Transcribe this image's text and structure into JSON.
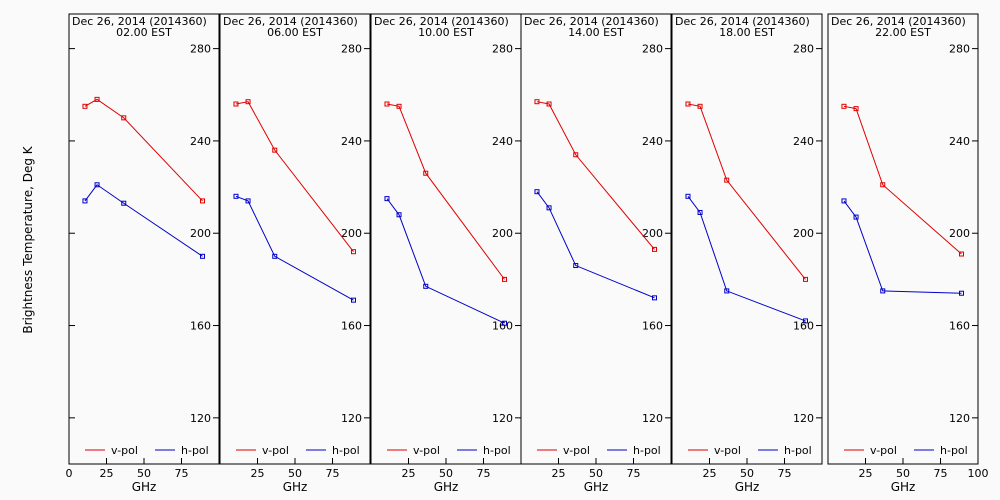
{
  "figure": {
    "ylabel": "Brightness Temperature, Deg K",
    "ylim": [
      100,
      295
    ],
    "yticks": [
      120,
      160,
      200,
      240,
      280
    ],
    "xlim": [
      0,
      100
    ],
    "xticks": [
      0,
      25,
      50,
      75,
      100
    ],
    "xlabel": "GHz",
    "colors": {
      "v-pol": "#e00000",
      "h-pol": "#0000c8",
      "background": "#fafafa"
    }
  },
  "chart_data": [
    {
      "type": "line",
      "title": "Dec 26, 2014 (2014360)",
      "subtitle": "02.00 EST",
      "xlabel": "GHz",
      "x": [
        10.65,
        18.7,
        36.5,
        89.0
      ],
      "series": [
        {
          "name": "v-pol",
          "values": [
            255,
            258,
            250,
            214
          ]
        },
        {
          "name": "h-pol",
          "values": [
            214,
            221,
            213,
            190
          ]
        }
      ]
    },
    {
      "type": "line",
      "title": "Dec 26, 2014 (2014360)",
      "subtitle": "06.00 EST",
      "xlabel": "GHz",
      "x": [
        10.65,
        18.7,
        36.5,
        89.0
      ],
      "series": [
        {
          "name": "v-pol",
          "values": [
            256,
            257,
            236,
            192
          ]
        },
        {
          "name": "h-pol",
          "values": [
            216,
            214,
            190,
            171
          ]
        }
      ]
    },
    {
      "type": "line",
      "title": "Dec 26, 2014 (2014360)",
      "subtitle": "10.00 EST",
      "xlabel": "GHz",
      "x": [
        10.65,
        18.7,
        36.5,
        89.0
      ],
      "series": [
        {
          "name": "v-pol",
          "values": [
            256,
            255,
            226,
            180
          ]
        },
        {
          "name": "h-pol",
          "values": [
            215,
            208,
            177,
            161
          ]
        }
      ]
    },
    {
      "type": "line",
      "title": "Dec 26, 2014 (2014360)",
      "subtitle": "14.00 EST",
      "xlabel": "GHz",
      "x": [
        10.65,
        18.7,
        36.5,
        89.0
      ],
      "series": [
        {
          "name": "v-pol",
          "values": [
            257,
            256,
            234,
            193
          ]
        },
        {
          "name": "h-pol",
          "values": [
            218,
            211,
            186,
            172
          ]
        }
      ]
    },
    {
      "type": "line",
      "title": "Dec 26, 2014 (2014360)",
      "subtitle": "18.00 EST",
      "xlabel": "GHz",
      "x": [
        10.65,
        18.7,
        36.5,
        89.0
      ],
      "series": [
        {
          "name": "v-pol",
          "values": [
            256,
            255,
            223,
            180
          ]
        },
        {
          "name": "h-pol",
          "values": [
            216,
            209,
            175,
            162
          ]
        }
      ]
    },
    {
      "type": "line",
      "title": "Dec 26, 2014 (2014360)",
      "subtitle": "22.00 EST",
      "xlabel": "GHz",
      "x": [
        10.65,
        18.7,
        36.5,
        89.0
      ],
      "series": [
        {
          "name": "v-pol",
          "values": [
            255,
            254,
            221,
            191
          ]
        },
        {
          "name": "h-pol",
          "values": [
            214,
            207,
            175,
            174
          ]
        }
      ]
    }
  ]
}
